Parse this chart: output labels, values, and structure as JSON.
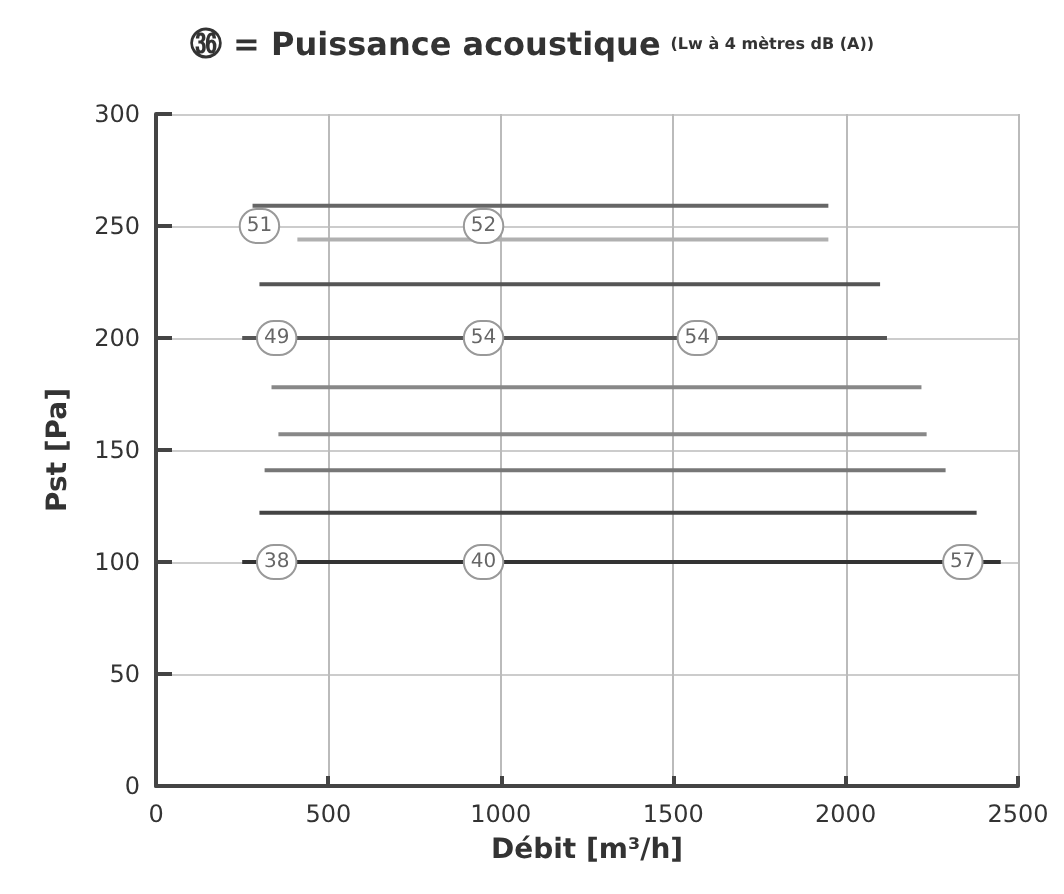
{
  "chart_data": {
    "type": "line",
    "title": "㊱ = Puissance acoustique",
    "subtitle": "(Lw à 4 mètres dB (A))",
    "xlabel": "Débit [m³/h]",
    "ylabel": "Pst [Pa]",
    "series": [
      {
        "color": "#666666",
        "x": [
          280,
          1950
        ],
        "values": [
          259,
          259
        ]
      },
      {
        "color": "#b0b0b0",
        "x": [
          410,
          1950
        ],
        "values": [
          244,
          244
        ]
      },
      {
        "color": "#555555",
        "x": [
          300,
          2100
        ],
        "values": [
          224,
          224
        ]
      },
      {
        "color": "#555555",
        "x": [
          250,
          2120
        ],
        "values": [
          200,
          200
        ]
      },
      {
        "color": "#888888",
        "x": [
          335,
          2220
        ],
        "values": [
          178,
          178
        ]
      },
      {
        "color": "#888888",
        "x": [
          355,
          2235
        ],
        "values": [
          157,
          157
        ]
      },
      {
        "color": "#777777",
        "x": [
          315,
          2290
        ],
        "values": [
          141,
          141
        ]
      },
      {
        "color": "#444444",
        "x": [
          300,
          2380
        ],
        "values": [
          122,
          122
        ]
      },
      {
        "color": "#333333",
        "x": [
          250,
          2450
        ],
        "values": [
          100,
          100
        ]
      }
    ],
    "annotations": [
      {
        "text": "51",
        "x": 300,
        "y": 250
      },
      {
        "text": "52",
        "x": 950,
        "y": 250
      },
      {
        "text": "49",
        "x": 350,
        "y": 200
      },
      {
        "text": "54",
        "x": 950,
        "y": 200
      },
      {
        "text": "54",
        "x": 1570,
        "y": 200
      },
      {
        "text": "38",
        "x": 350,
        "y": 100
      },
      {
        "text": "40",
        "x": 950,
        "y": 100
      },
      {
        "text": "57",
        "x": 2340,
        "y": 100
      }
    ],
    "xlim": [
      0,
      2500
    ],
    "xticks": [
      0,
      500,
      1000,
      1500,
      2000,
      2500
    ],
    "ylim": [
      0,
      300
    ],
    "yticks": [
      0,
      50,
      100,
      150,
      200,
      250,
      300
    ],
    "grid": true,
    "marker": "none",
    "line_style": "solid"
  }
}
